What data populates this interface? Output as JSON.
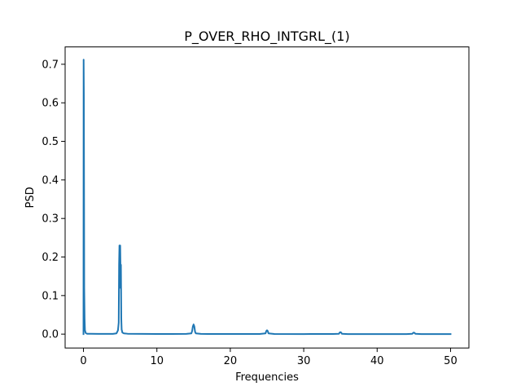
{
  "chart_data": {
    "type": "line",
    "title": "P_OVER_RHO_INTGRL_(1)",
    "xlabel": "Frequencies",
    "ylabel": "PSD",
    "xlim": [
      -2.5,
      52.5
    ],
    "ylim": [
      -0.036,
      0.745
    ],
    "xticks": [
      0,
      10,
      20,
      30,
      40,
      50
    ],
    "yticks": [
      0.0,
      0.1,
      0.2,
      0.3,
      0.4,
      0.5,
      0.6,
      0.7
    ],
    "xtick_labels": [
      "0",
      "10",
      "20",
      "30",
      "40",
      "50"
    ],
    "ytick_labels": [
      "0.0",
      "0.1",
      "0.2",
      "0.3",
      "0.4",
      "0.5",
      "0.6",
      "0.7"
    ],
    "grid": false,
    "series": [
      {
        "color": "#1f77b4",
        "x": [
          0,
          0.02,
          0.05,
          0.08,
          0.1,
          0.15,
          0.2,
          0.3,
          0.5,
          1.0,
          2.0,
          3.0,
          4.0,
          4.5,
          4.7,
          4.8,
          4.85,
          4.9,
          4.95,
          5.0,
          5.05,
          5.1,
          5.15,
          5.2,
          5.3,
          5.5,
          6.0,
          8.0,
          10.0,
          12.0,
          14.0,
          14.7,
          14.8,
          14.9,
          15.0,
          15.1,
          15.2,
          15.3,
          16.0,
          20.0,
          24.0,
          24.8,
          24.9,
          25.0,
          25.1,
          25.2,
          26.0,
          30.0,
          34.0,
          34.8,
          34.9,
          35.0,
          35.1,
          35.2,
          36.0,
          40.0,
          44.0,
          44.8,
          44.9,
          45.0,
          45.1,
          45.2,
          46.0,
          50.0
        ],
        "y": [
          0.0,
          0.712,
          0.62,
          0.35,
          0.12,
          0.04,
          0.01,
          0.003,
          0.001,
          0.0008,
          0.0006,
          0.0005,
          0.0007,
          0.002,
          0.01,
          0.03,
          0.18,
          0.23,
          0.12,
          0.23,
          0.16,
          0.18,
          0.04,
          0.012,
          0.004,
          0.002,
          0.001,
          0.0005,
          0.0004,
          0.0004,
          0.0005,
          0.002,
          0.008,
          0.02,
          0.025,
          0.02,
          0.006,
          0.002,
          0.0005,
          0.0003,
          0.0004,
          0.002,
          0.008,
          0.01,
          0.008,
          0.002,
          0.0003,
          0.0002,
          0.0003,
          0.001,
          0.004,
          0.005,
          0.004,
          0.001,
          0.0002,
          0.0002,
          0.0002,
          0.001,
          0.003,
          0.004,
          0.003,
          0.001,
          0.0002,
          0.0001
        ]
      }
    ]
  }
}
